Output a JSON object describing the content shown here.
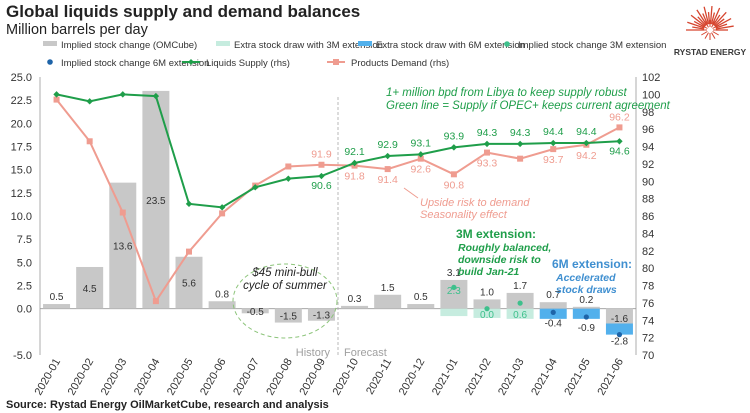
{
  "title": "Global liquids supply and demand balances",
  "subtitle": "Million barrels per day",
  "brand": "RYSTAD ENERGY",
  "source": "Source: Rystad Energy OilMarketCube, research and analysis",
  "colors": {
    "bar_gray": "#c8c8c8",
    "extra3m": "#c6ecdf",
    "extra6m": "#52b0ec",
    "dot3m": "#3ec08c",
    "dot6m": "#1e64a8",
    "supply": "#1f9e4a",
    "demand": "#ef9c90",
    "logo_red": "#d6452f"
  },
  "chart_data": {
    "type": "bar",
    "categories": [
      "2020-01",
      "2020-02",
      "2020-03",
      "2020-04",
      "2020-05",
      "2020-06",
      "2020-07",
      "2020-08",
      "2020-09",
      "2020-10",
      "2020-11",
      "2020-12",
      "2021-01",
      "2021-02",
      "2021-03",
      "2021-04",
      "2021-05",
      "2021-06"
    ],
    "y_left": {
      "min": -5,
      "max": 25,
      "step": 2.5,
      "ticks": [
        "-5.0",
        "0.0",
        "2.5",
        "5.0",
        "7.5",
        "10.0",
        "12.5",
        "15.0",
        "17.5",
        "20.0",
        "22.5",
        "25.0"
      ]
    },
    "y_right": {
      "min": 70,
      "max": 102,
      "step": 2,
      "ticks": [
        "70",
        "72",
        "74",
        "76",
        "78",
        "80",
        "82",
        "84",
        "86",
        "88",
        "90",
        "92",
        "94",
        "96",
        "98",
        "100",
        "102"
      ],
      "label": "rhs"
    },
    "series": [
      {
        "name": "Implied stock change (OMCube)",
        "kind": "bar",
        "axis": "left",
        "values": [
          0.5,
          4.5,
          13.6,
          23.5,
          5.6,
          0.8,
          -0.5,
          -1.5,
          -1.3,
          0.3,
          1.5,
          0.5,
          3.1,
          1.0,
          1.7,
          0.7,
          0.2,
          -1.6
        ],
        "labels": [
          "0.5",
          "4.5",
          "13.6",
          "23.5",
          "5.6",
          "0.8",
          "-0.5",
          "-1.5",
          "-1.3",
          "0.3",
          "1.5",
          "0.5",
          "3.1",
          "1.0",
          "1.7",
          "0.7",
          "0.2",
          "-1.6"
        ]
      },
      {
        "name": "Extra stock draw with 3M extension",
        "kind": "bar",
        "axis": "left",
        "values": [
          null,
          null,
          null,
          null,
          null,
          null,
          null,
          null,
          null,
          null,
          null,
          null,
          -0.8,
          -1.0,
          -1.1,
          null,
          null,
          null
        ]
      },
      {
        "name": "Extra stock draw with 6M extension",
        "kind": "bar",
        "axis": "left",
        "values": [
          null,
          null,
          null,
          null,
          null,
          null,
          null,
          null,
          null,
          null,
          null,
          null,
          null,
          null,
          null,
          -1.1,
          -1.1,
          -1.2
        ]
      },
      {
        "name": "Implied stock change 3M extension",
        "kind": "dot",
        "axis": "left",
        "values": [
          null,
          null,
          null,
          null,
          null,
          null,
          null,
          null,
          null,
          null,
          null,
          null,
          2.3,
          0.0,
          0.6,
          null,
          null,
          null
        ],
        "labels": [
          null,
          null,
          null,
          null,
          null,
          null,
          null,
          null,
          null,
          null,
          null,
          null,
          "2.3",
          "0.0",
          "0.6",
          null,
          null,
          null
        ]
      },
      {
        "name": "Implied stock change 6M extension",
        "kind": "dot",
        "axis": "left",
        "values": [
          null,
          null,
          null,
          null,
          null,
          null,
          null,
          null,
          null,
          null,
          null,
          null,
          null,
          null,
          null,
          -0.4,
          -0.9,
          -2.8
        ],
        "labels": [
          null,
          null,
          null,
          null,
          null,
          null,
          null,
          null,
          null,
          null,
          null,
          null,
          null,
          null,
          null,
          "-0.4",
          "-0.9",
          "-2.8"
        ]
      },
      {
        "name": "Liquids Supply (rhs)",
        "kind": "line",
        "axis": "right",
        "values": [
          100.0,
          99.2,
          100.0,
          99.8,
          87.4,
          87.0,
          89.3,
          90.3,
          90.6,
          92.1,
          92.9,
          93.1,
          93.9,
          94.3,
          94.3,
          94.4,
          94.4,
          94.6
        ],
        "labels": [
          null,
          null,
          null,
          null,
          null,
          null,
          null,
          null,
          "90.6",
          "92.1",
          "92.9",
          "93.1",
          "93.9",
          "94.3",
          "94.3",
          "94.4",
          "94.4",
          "94.6"
        ]
      },
      {
        "name": "Products Demand (rhs)",
        "kind": "line",
        "axis": "right",
        "values": [
          99.4,
          94.6,
          86.4,
          76.2,
          81.9,
          86.3,
          89.5,
          91.7,
          91.9,
          91.8,
          91.4,
          92.6,
          90.8,
          93.3,
          92.6,
          93.7,
          94.2,
          96.2
        ],
        "labels": [
          null,
          null,
          null,
          null,
          null,
          null,
          null,
          null,
          "91.9",
          "91.8",
          "91.4",
          "92.6",
          "90.8",
          "93.3",
          null,
          "93.7",
          "94.2",
          "96.2"
        ]
      }
    ],
    "legend_position": "top",
    "grid": false,
    "divider_after": "2020-09",
    "history_label": "History",
    "forecast_label": "Forecast",
    "annotations": {
      "libya_line1": "1+ million bpd from Libya to keep supply robust",
      "libya_line2": "Green line = Supply if OPEC+ keeps current agreement",
      "upside_line1": "Upside risk to demand",
      "upside_line2": "Seasonality effect",
      "bull_line1": "$45 mini-bull",
      "bull_line2": "cycle of summer",
      "ext3m_title": "3M extension:",
      "ext3m_line1": "Roughly balanced,",
      "ext3m_line2": "downside risk to",
      "ext3m_line3": "build Jan-21",
      "ext6m_title": "6M extension:",
      "ext6m_line1": "Accelerated",
      "ext6m_line2": "stock draws"
    }
  }
}
